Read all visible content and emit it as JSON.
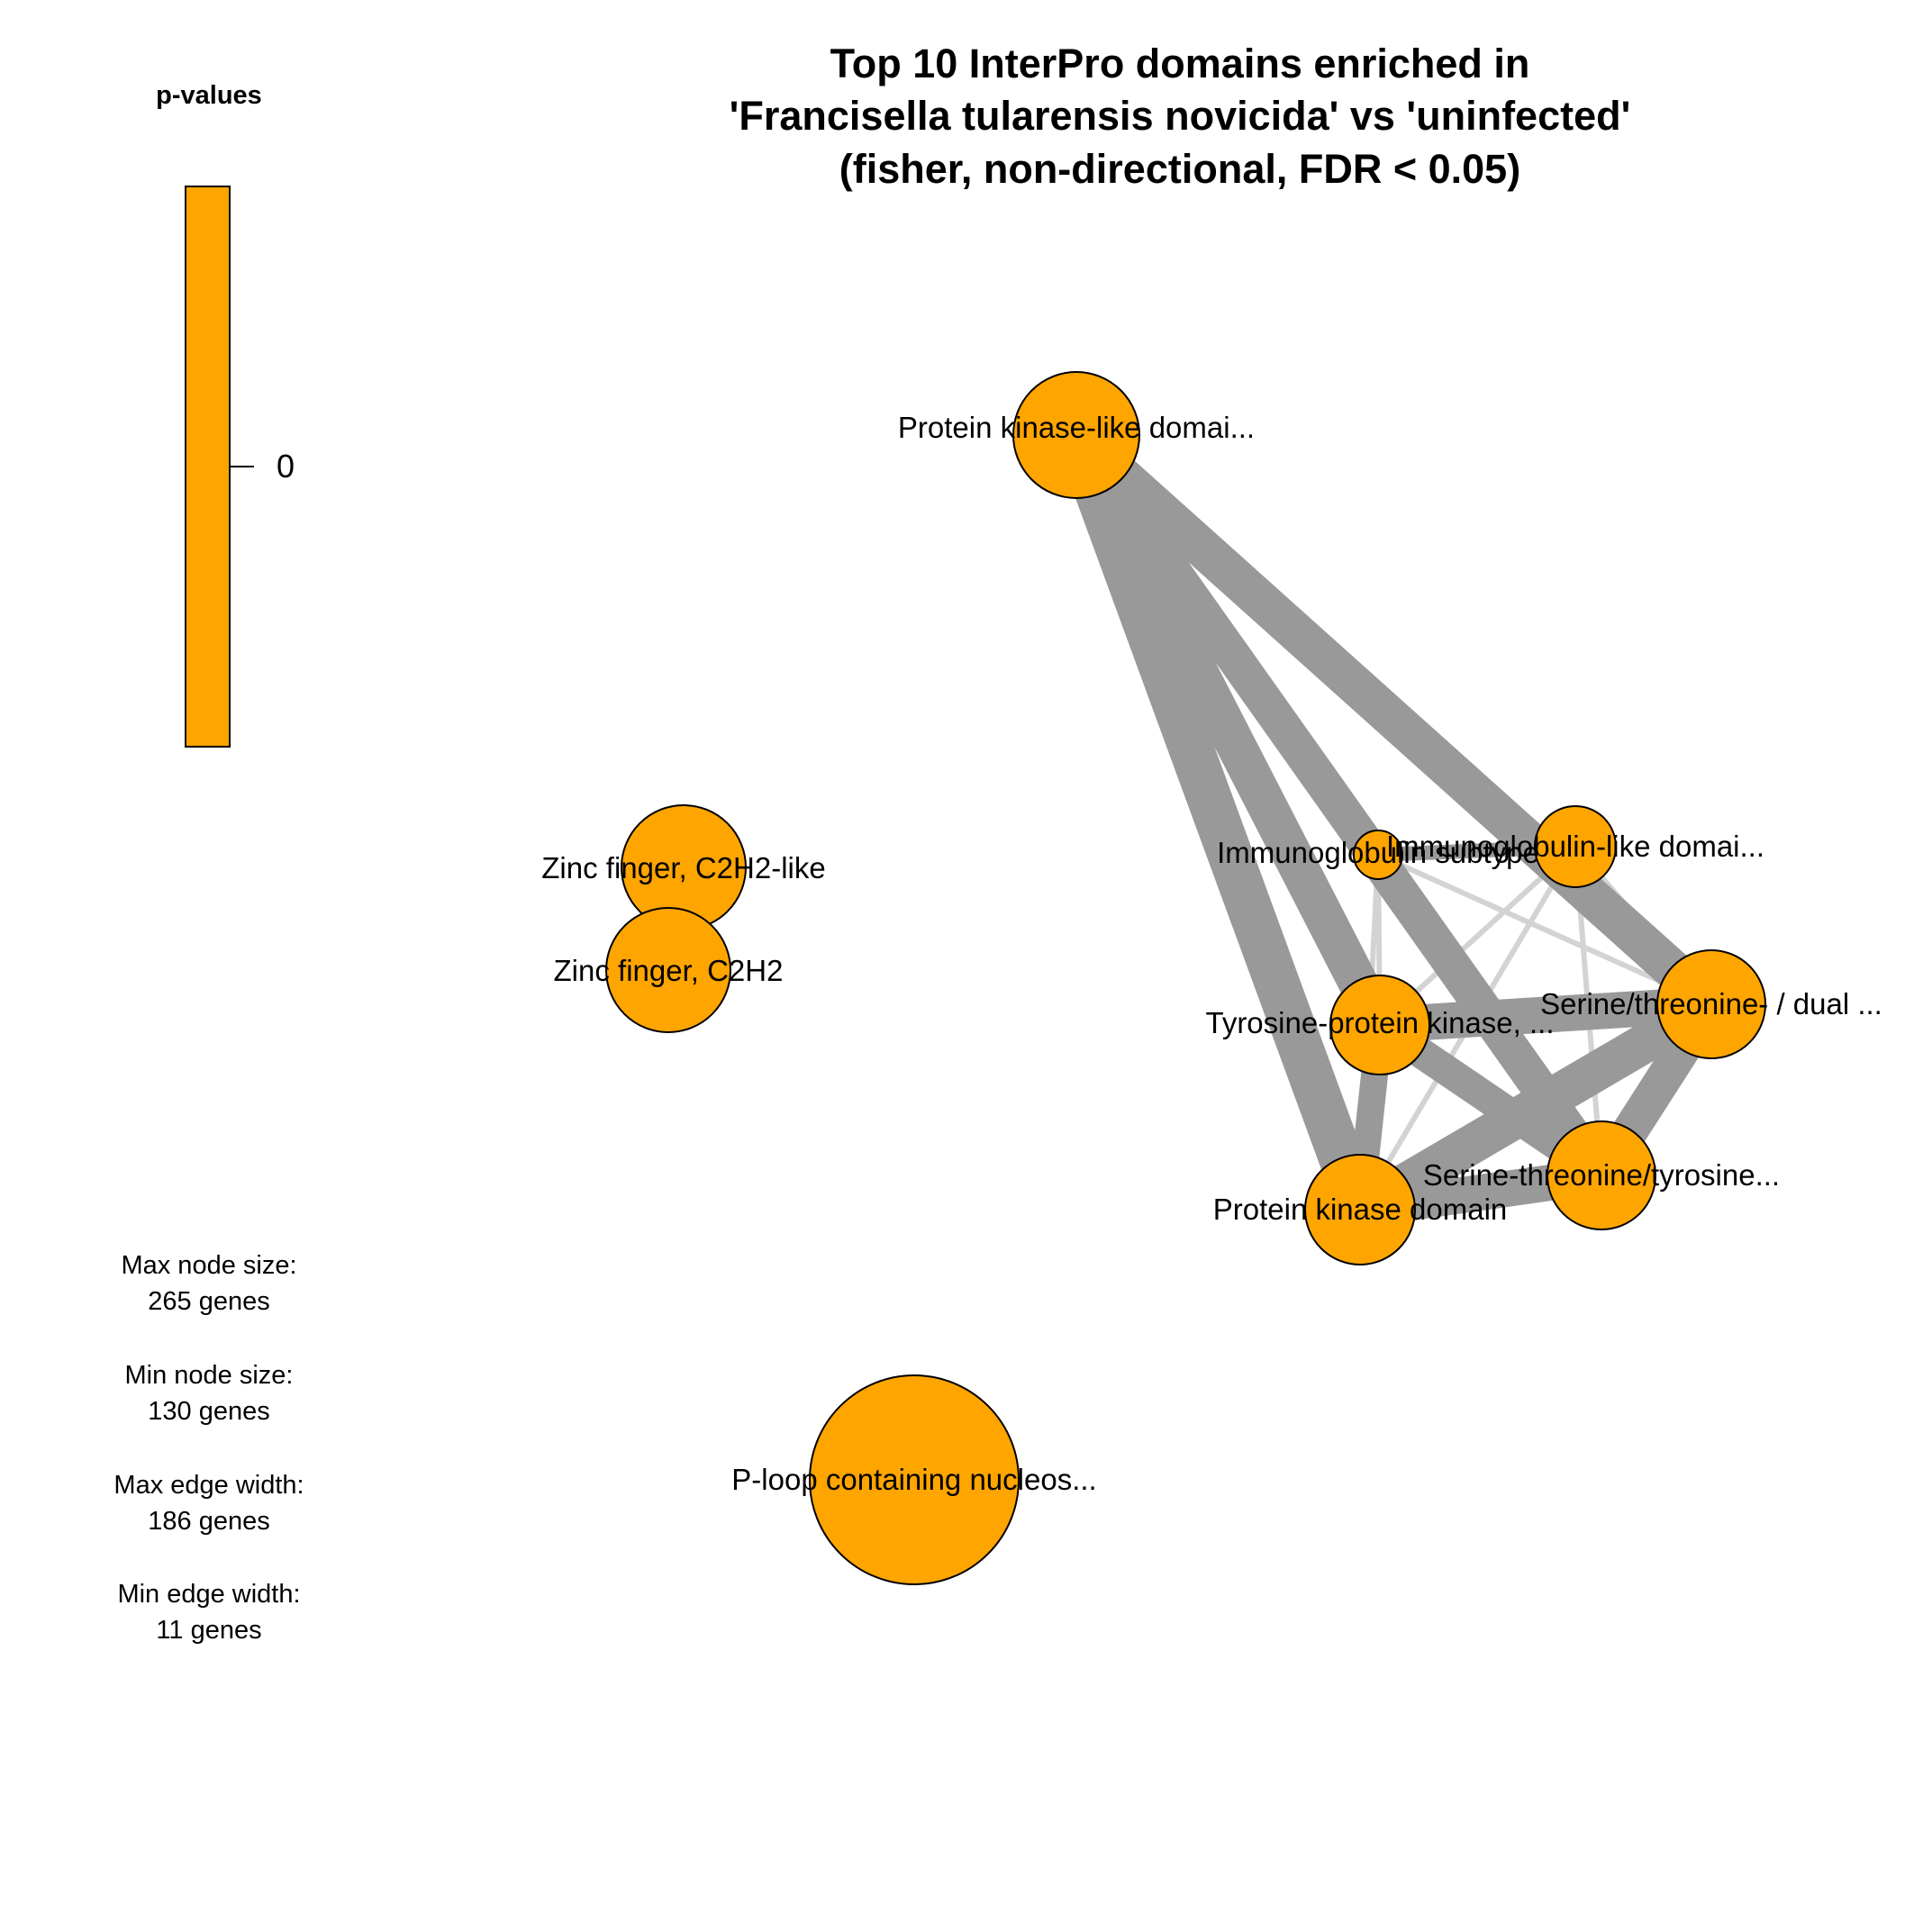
{
  "title": {
    "lines": [
      "Top 10 InterPro domains enriched in",
      "'Francisella tularensis novicida' vs 'uninfected'",
      "(fisher, non-directional, FDR < 0.05)"
    ]
  },
  "legend": {
    "title": "p-values",
    "tick_label": "0",
    "bar_color": "#FFA500"
  },
  "stats": {
    "max_node_label": "Max node size:",
    "max_node_value": "265 genes",
    "min_node_label": "Min node size:",
    "min_node_value": "130 genes",
    "max_edge_label": "Max edge width:",
    "max_edge_value": "186 genes",
    "min_edge_label": "Min edge width:",
    "min_edge_value": "11 genes"
  },
  "colors": {
    "node_fill": "#FFA500",
    "node_stroke": "#000000",
    "edge_heavy": "#999999",
    "edge_light": "#D3D3D3"
  },
  "nodes": [
    {
      "id": "pkl",
      "label": "Protein kinase-like domai..."
    },
    {
      "id": "zf_like",
      "label": "Zinc finger, C2H2-like"
    },
    {
      "id": "zf",
      "label": "Zinc finger, C2H2"
    },
    {
      "id": "ig_sub",
      "label": "Immunoglobulin subtype"
    },
    {
      "id": "ig_like",
      "label": "Immunoglobulin-like domai..."
    },
    {
      "id": "tyr",
      "label": "Tyrosine-protein kinase, ..."
    },
    {
      "id": "ser_dual",
      "label": "Serine/threonine- / dual ..."
    },
    {
      "id": "ser_tyr",
      "label": "Serine-threonine/tyrosine..."
    },
    {
      "id": "pkd",
      "label": "Protein kinase domain"
    },
    {
      "id": "ploop",
      "label": "P-loop containing nucleos..."
    }
  ],
  "edges": [
    {
      "source": "pkl",
      "target": "pkd",
      "strength": "heavy"
    },
    {
      "source": "pkl",
      "target": "tyr",
      "strength": "heavy"
    },
    {
      "source": "pkl",
      "target": "ser_dual",
      "strength": "heavy"
    },
    {
      "source": "pkl",
      "target": "ser_tyr",
      "strength": "heavy"
    },
    {
      "source": "pkd",
      "target": "ser_dual",
      "strength": "heavy"
    },
    {
      "source": "pkd",
      "target": "ser_tyr",
      "strength": "heavy"
    },
    {
      "source": "pkd",
      "target": "tyr",
      "strength": "heavy"
    },
    {
      "source": "tyr",
      "target": "ser_dual",
      "strength": "heavy"
    },
    {
      "source": "tyr",
      "target": "ser_tyr",
      "strength": "heavy"
    },
    {
      "source": "ser_dual",
      "target": "ser_tyr",
      "strength": "heavy"
    },
    {
      "source": "ig_sub",
      "target": "ig_like",
      "strength": "heavy"
    },
    {
      "source": "ig_sub",
      "target": "ser_dual",
      "strength": "light"
    },
    {
      "source": "ig_sub",
      "target": "pkd",
      "strength": "light"
    },
    {
      "source": "ig_sub",
      "target": "ser_tyr",
      "strength": "light"
    },
    {
      "source": "ig_sub",
      "target": "tyr",
      "strength": "light"
    },
    {
      "source": "ig_like",
      "target": "tyr",
      "strength": "light"
    },
    {
      "source": "ig_like",
      "target": "pkd",
      "strength": "light"
    },
    {
      "source": "ig_like",
      "target": "ser_tyr",
      "strength": "light"
    },
    {
      "source": "ig_like",
      "target": "ser_dual",
      "strength": "light"
    }
  ]
}
